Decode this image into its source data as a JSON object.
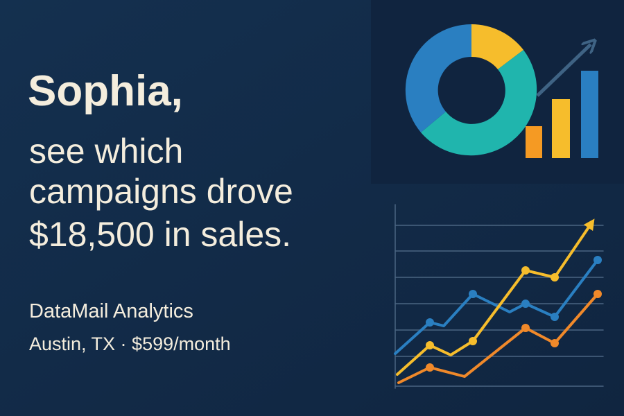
{
  "headline": {
    "name": "Sophia,",
    "lines": [
      "see which",
      "campaigns drove",
      "$18,500 in sales."
    ]
  },
  "company": "DataMail Analytics",
  "details": "Austin, TX · $599/month"
}
